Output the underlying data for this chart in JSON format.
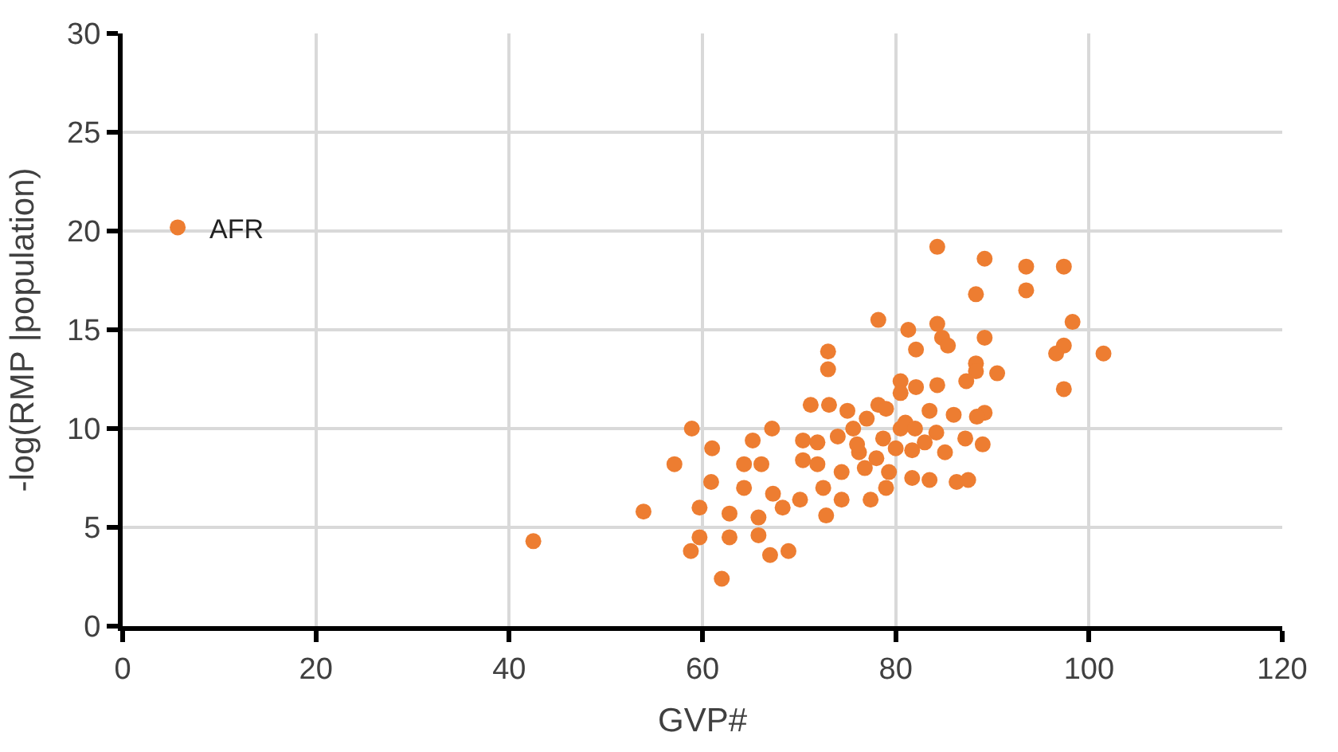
{
  "chart_data": {
    "type": "scatter",
    "xlabel": "GVP#",
    "ylabel": "-log(RMP |population)",
    "xlim": [
      0,
      120
    ],
    "ylim": [
      0,
      30
    ],
    "xticks": [
      0,
      20,
      40,
      60,
      80,
      100,
      120
    ],
    "yticks": [
      0,
      5,
      10,
      15,
      20,
      25,
      30
    ],
    "grid": true,
    "legend": "top left",
    "marker": "circle",
    "series": [
      {
        "name": "AFR",
        "color": "#ed7d31",
        "x": [
          84.3,
          89.2,
          93.5,
          97.4,
          88.3,
          93.5,
          78.2,
          81.3,
          84.3,
          84.8,
          85.4,
          89.2,
          98.3,
          97.4,
          96.6,
          101.5,
          82.1,
          73.0,
          73.0,
          88.3,
          88.3,
          90.5,
          87.3,
          80.5,
          82.1,
          80.5,
          84.3,
          97.4,
          71.2,
          73.1,
          75.0,
          78.2,
          83.5,
          86.0,
          89.2,
          88.4,
          58.9,
          67.2,
          57.1,
          61.0,
          65.2,
          64.3,
          66.1,
          70.4,
          71.9,
          70.4,
          71.9,
          75.6,
          76.2,
          78.7,
          80.5,
          81.7,
          84.2,
          85.1,
          87.2,
          89.0,
          74.4,
          76.8,
          79.3,
          81.7,
          83.5,
          86.3,
          87.5,
          60.9,
          64.3,
          67.3,
          70.1,
          72.5,
          74.4,
          77.4,
          79.0,
          53.9,
          59.7,
          62.8,
          65.8,
          68.3,
          72.8,
          62.8,
          59.7,
          58.8,
          65.8,
          67.0,
          68.9,
          62.0,
          42.5,
          77,
          79,
          81,
          76,
          80,
          82,
          78,
          74,
          83
        ],
        "values": [
          19.2,
          18.6,
          18.2,
          18.2,
          16.8,
          17.0,
          15.5,
          15.0,
          15.3,
          14.6,
          14.2,
          14.6,
          15.4,
          14.2,
          13.8,
          13.8,
          14.0,
          13.9,
          13.0,
          13.3,
          12.9,
          12.8,
          12.4,
          12.4,
          12.1,
          11.8,
          12.2,
          12.0,
          11.2,
          11.2,
          10.9,
          11.2,
          10.9,
          10.7,
          10.8,
          10.6,
          10.0,
          10.0,
          8.2,
          9.0,
          9.4,
          8.2,
          8.2,
          9.4,
          9.3,
          8.4,
          8.2,
          10.0,
          8.8,
          9.5,
          10.0,
          8.9,
          9.8,
          8.8,
          9.5,
          9.2,
          7.8,
          8.0,
          7.8,
          7.5,
          7.4,
          7.3,
          7.4,
          7.3,
          7.0,
          6.7,
          6.4,
          7.0,
          6.4,
          6.4,
          7.0,
          5.8,
          6.0,
          5.7,
          5.5,
          6.0,
          5.6,
          4.5,
          4.5,
          3.8,
          4.6,
          3.6,
          3.8,
          2.4,
          4.3,
          10.5,
          11.0,
          10.3,
          9.2,
          9.0,
          10.0,
          8.5,
          9.6,
          9.3
        ]
      }
    ]
  }
}
